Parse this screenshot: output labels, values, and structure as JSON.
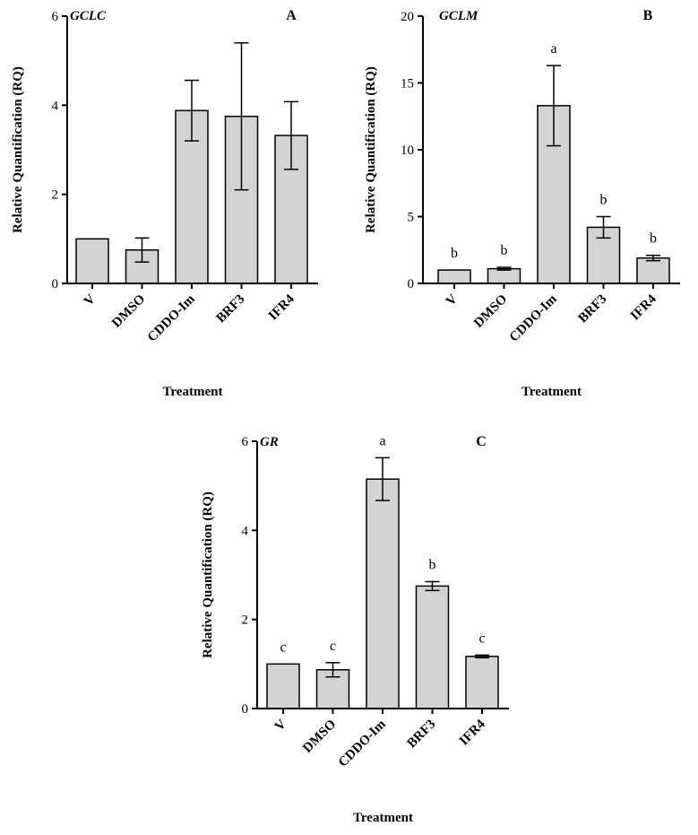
{
  "style": {
    "bar_fill": "#d3d3d3",
    "bar_stroke": "#000000",
    "axis_color": "#000000"
  },
  "chart_data": [
    {
      "type": "bar",
      "title": "GCLC",
      "panel_label": "A",
      "xlabel": "Treatment",
      "ylabel": "Relative Quantification (RQ)",
      "categories": [
        "V",
        "DMSO",
        "CDDO-Im",
        "BRF3",
        "IFR4"
      ],
      "values": [
        1.0,
        0.75,
        3.88,
        3.75,
        3.32
      ],
      "errors": [
        null,
        0.27,
        0.68,
        1.65,
        0.76
      ],
      "significance": [
        "",
        "",
        "",
        "",
        ""
      ],
      "ylim": [
        0,
        6
      ],
      "yticks": [
        "0",
        "2",
        "4",
        "6"
      ]
    },
    {
      "type": "bar",
      "title": "GCLM",
      "panel_label": "B",
      "xlabel": "Treatment",
      "ylabel": "Relative Quantification (RQ)",
      "categories": [
        "V",
        "DMSO",
        "CDDO-Im",
        "BRF3",
        "IFR4"
      ],
      "values": [
        1.0,
        1.1,
        13.3,
        4.2,
        1.9
      ],
      "errors": [
        null,
        0.1,
        3.0,
        0.8,
        0.2
      ],
      "significance": [
        "b",
        "b",
        "a",
        "b",
        "b"
      ],
      "ylim": [
        0,
        20
      ],
      "yticks": [
        "0",
        "5",
        "10",
        "15",
        "20"
      ]
    },
    {
      "type": "bar",
      "title": "GR",
      "panel_label": "C",
      "xlabel": "Treatment",
      "ylabel": "Relative Quantification (RQ)",
      "categories": [
        "V",
        "DMSO",
        "CDDO-Im",
        "BRF3",
        "IFR4"
      ],
      "values": [
        1.0,
        0.87,
        5.15,
        2.75,
        1.17
      ],
      "errors": [
        null,
        0.16,
        0.48,
        0.1,
        0.03
      ],
      "significance": [
        "c",
        "c",
        "a",
        "b",
        "c"
      ],
      "ylim": [
        0,
        6
      ],
      "yticks": [
        "0",
        "2",
        "4",
        "6"
      ]
    }
  ]
}
